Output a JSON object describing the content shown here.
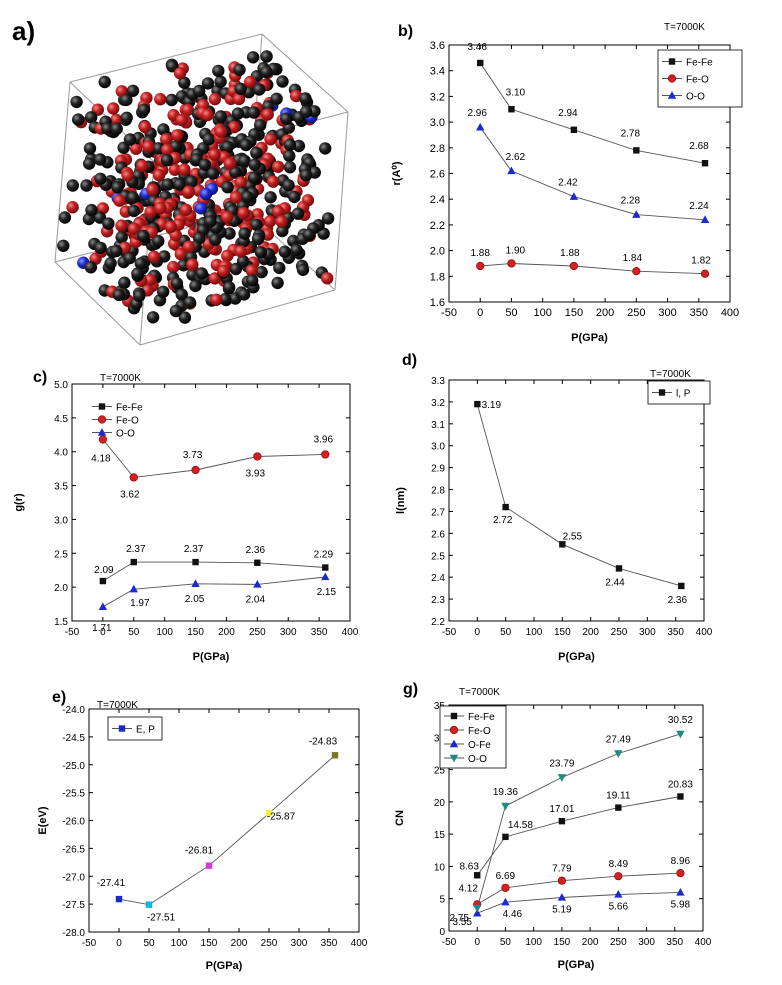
{
  "panels": {
    "a": {
      "label": "a)"
    }
  },
  "colors": {
    "fe": "#111111",
    "o": "#b51e1e",
    "blue": "#1c2bd1",
    "series_line": "#555555",
    "teal": "#1f8a85"
  },
  "chart_data": [
    {
      "id": "b",
      "label": "b)",
      "type": "line",
      "title": "",
      "temp": "T=7000K",
      "xlabel": "P(GPa)",
      "ylabel": "r(A⁰)",
      "xlim": [
        -50,
        400
      ],
      "ylim": [
        1.6,
        3.6
      ],
      "xticks": [
        -50,
        0,
        50,
        100,
        150,
        200,
        250,
        300,
        350,
        400
      ],
      "xtick_labels": [
        "-50",
        "0",
        "50",
        "100",
        "150",
        "200",
        "250",
        "300",
        "350",
        "400"
      ],
      "yticks": [
        1.6,
        1.8,
        2.0,
        2.2,
        2.4,
        2.6,
        2.8,
        3.0,
        3.2,
        3.4,
        3.6
      ],
      "ytick_labels": [
        "1.6",
        "1.8",
        "2.0",
        "2.2",
        "2.4",
        "2.6",
        "2.8",
        "3.0",
        "3.2",
        "3.4",
        "3.6"
      ],
      "x": [
        0,
        50,
        150,
        250,
        360
      ],
      "legend_position": "top-right",
      "series": [
        {
          "name": "Fe-Fe",
          "marker": "square",
          "color": "#111111",
          "values": [
            3.46,
            3.1,
            2.94,
            2.78,
            2.68
          ],
          "labels": [
            "3.46",
            "3.10",
            "2.94",
            "2.78",
            "2.68"
          ]
        },
        {
          "name": "Fe-O",
          "marker": "circle",
          "color": "#d42020",
          "values": [
            1.88,
            1.9,
            1.88,
            1.84,
            1.82
          ],
          "labels": [
            "1.88",
            "1.90",
            "1.88",
            "1.84",
            "1.82"
          ]
        },
        {
          "name": "O-O",
          "marker": "triangle",
          "color": "#1c2bd1",
          "values": [
            2.96,
            2.62,
            2.42,
            2.28,
            2.24
          ],
          "labels": [
            "2.96",
            "2.62",
            "2.42",
            "2.28",
            "2.24"
          ]
        }
      ]
    },
    {
      "id": "c",
      "label": "c)",
      "type": "line",
      "title": "",
      "temp": "T=7000K",
      "xlabel": "P(GPa)",
      "ylabel": "g(r)",
      "xlim": [
        -50,
        400
      ],
      "ylim": [
        1.5,
        5.0
      ],
      "xticks": [
        -50,
        0,
        50,
        100,
        150,
        200,
        250,
        300,
        350,
        400
      ],
      "xtick_labels": [
        "-50",
        "0",
        "50",
        "100",
        "150",
        "200",
        "250",
        "300",
        "350",
        "400"
      ],
      "yticks": [
        1.5,
        2.0,
        2.5,
        3.0,
        3.5,
        4.0,
        4.5,
        5.0
      ],
      "ytick_labels": [
        "1.5",
        "2.0",
        "2.5",
        "3.0",
        "3.5",
        "4.0",
        "4.5",
        "5.0"
      ],
      "x": [
        0,
        50,
        150,
        250,
        360
      ],
      "legend_position": "top-left",
      "series": [
        {
          "name": "Fe-Fe",
          "marker": "square",
          "color": "#111111",
          "values": [
            2.09,
            2.37,
            2.37,
            2.36,
            2.29
          ],
          "labels": [
            "2.09",
            "2.37",
            "2.37",
            "2.36",
            "2.29"
          ]
        },
        {
          "name": "Fe-O",
          "marker": "circle",
          "color": "#d42020",
          "values": [
            4.18,
            3.62,
            3.73,
            3.93,
            3.96
          ],
          "labels": [
            "4.18",
            "3.62",
            "3.73",
            "3.93",
            "3.96"
          ]
        },
        {
          "name": "O-O",
          "marker": "triangle",
          "color": "#1c2bd1",
          "values": [
            1.71,
            1.97,
            2.05,
            2.04,
            2.15
          ],
          "labels": [
            "1.71",
            "1.97",
            "2.05",
            "2.04",
            "2.15"
          ]
        }
      ]
    },
    {
      "id": "d",
      "label": "d)",
      "type": "line",
      "title": "",
      "temp": "T=7000K",
      "xlabel": "P(GPa)",
      "ylabel": "l(nm)",
      "xlim": [
        -50,
        400
      ],
      "ylim": [
        2.2,
        3.3
      ],
      "xticks": [
        -50,
        0,
        50,
        100,
        150,
        200,
        250,
        300,
        350,
        400
      ],
      "xtick_labels": [
        "-50",
        "0",
        "50",
        "100",
        "150",
        "200",
        "250",
        "300",
        "350",
        "400"
      ],
      "yticks": [
        2.2,
        2.3,
        2.4,
        2.5,
        2.6,
        2.7,
        2.8,
        2.9,
        3.0,
        3.1,
        3.2,
        3.3
      ],
      "ytick_labels": [
        "2.2",
        "2.3",
        "2.4",
        "2.5",
        "2.6",
        "2.7",
        "2.8",
        "2.9",
        "3.0",
        "3.1",
        "3.2",
        "3.3"
      ],
      "x": [
        0,
        50,
        150,
        250,
        360
      ],
      "legend_position": "top-right",
      "series": [
        {
          "name": "l, P",
          "marker": "square",
          "color": "#111111",
          "values": [
            3.19,
            2.72,
            2.55,
            2.44,
            2.36
          ],
          "labels": [
            "3.19",
            "2.72",
            "2.55",
            "2.44",
            "2.36"
          ]
        }
      ]
    },
    {
      "id": "e",
      "label": "e)",
      "type": "line",
      "title": "",
      "temp": "T=7000K",
      "xlabel": "P(GPa)",
      "ylabel": "E(eV)",
      "xlim": [
        -50,
        400
      ],
      "ylim": [
        -28.0,
        -24.0
      ],
      "xticks": [
        -50,
        0,
        50,
        100,
        150,
        200,
        250,
        300,
        350,
        400
      ],
      "xtick_labels": [
        "-50",
        "0",
        "50",
        "100",
        "150",
        "200",
        "250",
        "300",
        "350",
        "400"
      ],
      "yticks": [
        -28.0,
        -27.5,
        -27.0,
        -26.5,
        -26.0,
        -25.5,
        -25.0,
        -24.5,
        -24.0
      ],
      "ytick_labels": [
        "-28.0",
        "-27.5",
        "-27.0",
        "-26.5",
        "-26.0",
        "-25.5",
        "-25.0",
        "-24.5",
        "-24.0"
      ],
      "x": [
        0,
        50,
        150,
        250,
        360
      ],
      "legend_position": "top-left",
      "series": [
        {
          "name": "E, P",
          "marker": "square",
          "color": "#1c2bd1",
          "point_colors": [
            "#1c2bd1",
            "#00b7e8",
            "#d43bd4",
            "#f2ef3a",
            "#7a7a22"
          ],
          "values": [
            -27.41,
            -27.51,
            -26.81,
            -25.87,
            -24.83
          ],
          "labels": [
            "-27.41",
            "-27.51",
            "-26.81",
            "-25.87",
            "-24.83"
          ]
        }
      ]
    },
    {
      "id": "g",
      "label": "g)",
      "type": "line",
      "title": "",
      "temp": "T=7000K",
      "xlabel": "P(GPa)",
      "ylabel": "CN",
      "xlim": [
        -50,
        400
      ],
      "ylim": [
        0,
        35
      ],
      "xticks": [
        -50,
        0,
        50,
        100,
        150,
        200,
        250,
        300,
        350,
        400
      ],
      "xtick_labels": [
        "-50",
        "0",
        "50",
        "100",
        "150",
        "200",
        "250",
        "300",
        "350",
        "400"
      ],
      "yticks": [
        0,
        5,
        10,
        15,
        20,
        25,
        30,
        35
      ],
      "ytick_labels": [
        "0",
        "5",
        "10",
        "15",
        "20",
        "25",
        "30",
        "35"
      ],
      "x": [
        0,
        50,
        150,
        250,
        360
      ],
      "legend_position": "top-left",
      "series": [
        {
          "name": "Fe-Fe",
          "marker": "square",
          "color": "#111111",
          "values": [
            8.63,
            14.58,
            17.01,
            19.11,
            20.83
          ],
          "labels": [
            "8.63",
            "14.58",
            "17.01",
            "19.11",
            "20.83"
          ]
        },
        {
          "name": "Fe-O",
          "marker": "circle",
          "color": "#d42020",
          "values": [
            4.12,
            6.69,
            7.79,
            8.49,
            8.96
          ],
          "labels": [
            "4.12",
            "6.69",
            "7.79",
            "8.49",
            "8.96"
          ]
        },
        {
          "name": "O-Fe",
          "marker": "triangle",
          "color": "#1c2bd1",
          "values": [
            2.75,
            4.46,
            5.19,
            5.66,
            5.98
          ],
          "labels": [
            "2.75",
            "4.46",
            "5.19",
            "5.66",
            "5.98"
          ]
        },
        {
          "name": "O-O",
          "marker": "tridown",
          "color": "#1f8a85",
          "values": [
            3.55,
            19.36,
            23.79,
            27.49,
            30.52
          ],
          "labels": [
            "3.55",
            "19.36",
            "23.79",
            "27.49",
            "30.52"
          ]
        }
      ]
    }
  ]
}
